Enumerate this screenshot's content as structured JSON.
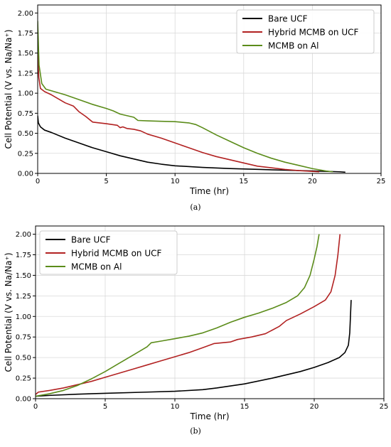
{
  "chart_data": [
    {
      "type": "line",
      "panel_label": "(a)",
      "xlabel": "Time (hr)",
      "ylabel": "Cell Potential (V vs. Na/Na⁺)",
      "xlim": [
        0,
        25
      ],
      "ylim": [
        0,
        2.1
      ],
      "xticks": [
        "0",
        "5",
        "10",
        "15",
        "20",
        "25"
      ],
      "yticks": [
        "0.00",
        "0.25",
        "0.50",
        "0.75",
        "1.00",
        "1.25",
        "1.50",
        "1.75",
        "2.00"
      ],
      "grid": true,
      "legend_position": "top-right",
      "series": [
        {
          "name": "Bare UCF",
          "color": "#000000",
          "points": [
            [
              0,
              0.72
            ],
            [
              0.05,
              0.63
            ],
            [
              0.2,
              0.58
            ],
            [
              0.5,
              0.54
            ],
            [
              1,
              0.51
            ],
            [
              2,
              0.44
            ],
            [
              3,
              0.38
            ],
            [
              4,
              0.32
            ],
            [
              5,
              0.27
            ],
            [
              6,
              0.22
            ],
            [
              7,
              0.18
            ],
            [
              8,
              0.14
            ],
            [
              9,
              0.115
            ],
            [
              10,
              0.095
            ],
            [
              12,
              0.075
            ],
            [
              14,
              0.06
            ],
            [
              16,
              0.05
            ],
            [
              18,
              0.04
            ],
            [
              20,
              0.03
            ],
            [
              22,
              0.02
            ],
            [
              22.4,
              0.015
            ]
          ]
        },
        {
          "name": "Hybrid MCMB on UCF",
          "color": "#b22222",
          "points": [
            [
              0,
              1.5
            ],
            [
              0.08,
              1.2
            ],
            [
              0.2,
              1.06
            ],
            [
              0.5,
              1.02
            ],
            [
              1,
              0.98
            ],
            [
              1.5,
              0.93
            ],
            [
              2,
              0.88
            ],
            [
              2.6,
              0.84
            ],
            [
              3,
              0.77
            ],
            [
              3.5,
              0.71
            ],
            [
              4,
              0.64
            ],
            [
              5,
              0.62
            ],
            [
              5.8,
              0.6
            ],
            [
              6,
              0.57
            ],
            [
              6.2,
              0.58
            ],
            [
              6.5,
              0.56
            ],
            [
              7,
              0.55
            ],
            [
              7.5,
              0.53
            ],
            [
              8,
              0.49
            ],
            [
              9,
              0.44
            ],
            [
              10,
              0.38
            ],
            [
              11,
              0.32
            ],
            [
              12,
              0.26
            ],
            [
              13,
              0.21
            ],
            [
              14,
              0.17
            ],
            [
              15,
              0.13
            ],
            [
              16,
              0.09
            ],
            [
              17,
              0.07
            ],
            [
              18,
              0.05
            ],
            [
              19,
              0.035
            ],
            [
              20,
              0.025
            ],
            [
              20.5,
              0.02
            ]
          ]
        },
        {
          "name": "MCMB on Al",
          "color": "#5b8c1a",
          "points": [
            [
              0,
              1.9
            ],
            [
              0.1,
              1.35
            ],
            [
              0.3,
              1.12
            ],
            [
              0.6,
              1.05
            ],
            [
              1,
              1.03
            ],
            [
              2,
              0.98
            ],
            [
              3,
              0.92
            ],
            [
              4,
              0.86
            ],
            [
              5,
              0.81
            ],
            [
              5.5,
              0.78
            ],
            [
              6,
              0.74
            ],
            [
              7,
              0.7
            ],
            [
              7.3,
              0.66
            ],
            [
              8,
              0.655
            ],
            [
              9,
              0.65
            ],
            [
              10,
              0.645
            ],
            [
              11,
              0.63
            ],
            [
              11.5,
              0.61
            ],
            [
              12,
              0.57
            ],
            [
              13,
              0.48
            ],
            [
              14,
              0.4
            ],
            [
              15,
              0.32
            ],
            [
              16,
              0.25
            ],
            [
              17,
              0.19
            ],
            [
              18,
              0.14
            ],
            [
              19,
              0.1
            ],
            [
              20,
              0.06
            ],
            [
              21,
              0.03
            ],
            [
              21.5,
              0.02
            ]
          ]
        }
      ]
    },
    {
      "type": "line",
      "panel_label": "(b)",
      "xlabel": "Time (hr)",
      "ylabel": "Cell Potential (V vs. Na/Na⁺)",
      "xlim": [
        0,
        25
      ],
      "ylim": [
        0,
        2.1
      ],
      "xticks": [
        "0",
        "5",
        "10",
        "15",
        "20",
        "25"
      ],
      "yticks": [
        "0.00",
        "0.25",
        "0.50",
        "0.75",
        "1.00",
        "1.25",
        "1.50",
        "1.75",
        "2.00"
      ],
      "grid": true,
      "legend_position": "top-left",
      "series": [
        {
          "name": "Bare UCF",
          "color": "#000000",
          "points": [
            [
              0,
              0.03
            ],
            [
              1,
              0.04
            ],
            [
              3,
              0.055
            ],
            [
              5,
              0.065
            ],
            [
              8,
              0.08
            ],
            [
              10,
              0.09
            ],
            [
              12,
              0.11
            ],
            [
              13,
              0.13
            ],
            [
              15,
              0.18
            ],
            [
              17,
              0.25
            ],
            [
              19,
              0.33
            ],
            [
              20,
              0.38
            ],
            [
              21,
              0.44
            ],
            [
              21.8,
              0.5
            ],
            [
              22.2,
              0.56
            ],
            [
              22.45,
              0.65
            ],
            [
              22.55,
              0.8
            ],
            [
              22.6,
              1.0
            ],
            [
              22.65,
              1.2
            ]
          ]
        },
        {
          "name": "Hybrid MCMB on UCF",
          "color": "#b22222",
          "points": [
            [
              0,
              0.05
            ],
            [
              0.2,
              0.08
            ],
            [
              1,
              0.1
            ],
            [
              2,
              0.13
            ],
            [
              3,
              0.17
            ],
            [
              4,
              0.21
            ],
            [
              5,
              0.26
            ],
            [
              6,
              0.31
            ],
            [
              7,
              0.36
            ],
            [
              8,
              0.41
            ],
            [
              9,
              0.46
            ],
            [
              10,
              0.51
            ],
            [
              11,
              0.56
            ],
            [
              12,
              0.62
            ],
            [
              12.8,
              0.67
            ],
            [
              14,
              0.69
            ],
            [
              14.5,
              0.72
            ],
            [
              15.5,
              0.75
            ],
            [
              16.5,
              0.79
            ],
            [
              17.5,
              0.88
            ],
            [
              18,
              0.95
            ],
            [
              19,
              1.03
            ],
            [
              20,
              1.12
            ],
            [
              20.8,
              1.2
            ],
            [
              21.2,
              1.3
            ],
            [
              21.5,
              1.5
            ],
            [
              21.7,
              1.75
            ],
            [
              21.85,
              2.0
            ]
          ]
        },
        {
          "name": "MCMB on Al",
          "color": "#5b8c1a",
          "points": [
            [
              0,
              0.03
            ],
            [
              1,
              0.06
            ],
            [
              2,
              0.1
            ],
            [
              3,
              0.16
            ],
            [
              4,
              0.24
            ],
            [
              5,
              0.33
            ],
            [
              6,
              0.43
            ],
            [
              7,
              0.53
            ],
            [
              8,
              0.63
            ],
            [
              8.3,
              0.68
            ],
            [
              9,
              0.7
            ],
            [
              10,
              0.73
            ],
            [
              11,
              0.76
            ],
            [
              12,
              0.8
            ],
            [
              13,
              0.86
            ],
            [
              14,
              0.93
            ],
            [
              15,
              0.99
            ],
            [
              16,
              1.04
            ],
            [
              17,
              1.1
            ],
            [
              18,
              1.17
            ],
            [
              18.8,
              1.25
            ],
            [
              19.3,
              1.35
            ],
            [
              19.7,
              1.5
            ],
            [
              20,
              1.7
            ],
            [
              20.2,
              1.85
            ],
            [
              20.35,
              2.0
            ]
          ]
        }
      ]
    }
  ]
}
